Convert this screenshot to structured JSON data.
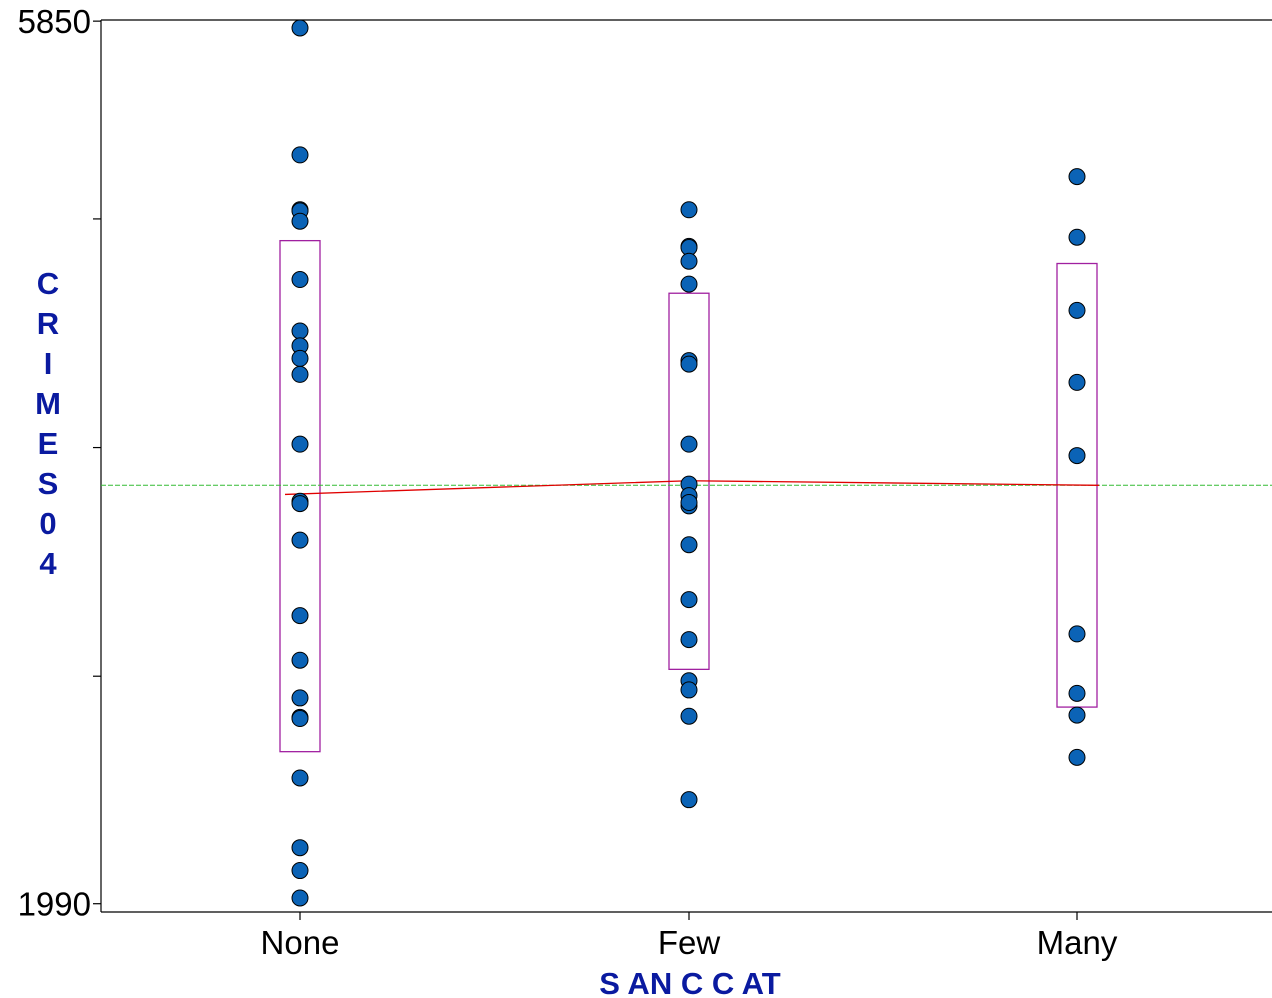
{
  "chart_data": {
    "type": "scatter",
    "title": "",
    "xlabel": "S AN C C AT",
    "ylabel_letters": [
      "C",
      "R",
      "I",
      "M",
      "E",
      "S",
      "0",
      "4"
    ],
    "categories": [
      "None",
      "Few",
      "Many"
    ],
    "yticks_labeled": [
      {
        "value": 5850,
        "label": "5850"
      },
      {
        "value": 1990,
        "label": "1990"
      }
    ],
    "yticks_unlabeled": [
      4985,
      3985,
      2985
    ],
    "ylim": [
      1950,
      5880
    ],
    "grand_mean": 3820,
    "series": [
      {
        "category": "None",
        "values": [
          5820,
          5265,
          5025,
          5020,
          4975,
          4720,
          4495,
          4430,
          4375,
          4305,
          4000,
          3750,
          3740,
          3580,
          3250,
          3055,
          2890,
          2805,
          2800,
          2540,
          2235,
          2135,
          2015
        ],
        "mean": 3780,
        "box": [
          2655,
          4890
        ]
      },
      {
        "category": "Few",
        "values": [
          5025,
          4865,
          4860,
          4800,
          4700,
          4365,
          4350,
          4000,
          3825,
          3775,
          3730,
          3745,
          3560,
          3320,
          3145,
          2965,
          2925,
          2810,
          2445
        ],
        "mean": 3840,
        "box": [
          3015,
          4660
        ]
      },
      {
        "category": "Many",
        "values": [
          5170,
          4905,
          4585,
          4270,
          3950,
          3170,
          2910,
          2815,
          2630
        ],
        "mean": 3820,
        "box": [
          2850,
          4790
        ]
      }
    ],
    "colors": {
      "point_fill": "#0b63b6",
      "point_stroke": "#000000",
      "box": "#a020a0",
      "mean_line": "#e00000",
      "grand_mean_line": "#33bb33",
      "axis_title": "#0a1aa0"
    }
  }
}
